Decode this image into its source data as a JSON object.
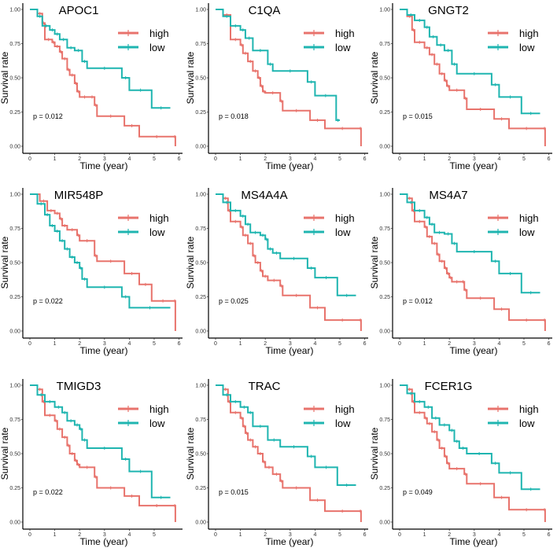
{
  "colors": {
    "high": "#E8736C",
    "low": "#1FB5B0"
  },
  "chart_data": [
    {
      "type": "line",
      "title": "APOC1",
      "xlabel": "Time (year)",
      "ylabel": "Survival rate",
      "xlim": [
        0,
        6
      ],
      "ylim": [
        0,
        1
      ],
      "xticks": [
        "0",
        "1",
        "2",
        "3",
        "4",
        "5",
        "6"
      ],
      "yticks": [
        "0.00",
        "0.25",
        "0.50",
        "0.75",
        "1.00"
      ],
      "legend": [
        "high",
        "low"
      ],
      "legend_position": "top-right",
      "annotation": "p = 0.012",
      "series": [
        {
          "name": "high",
          "x": [
            0,
            0.3,
            0.5,
            0.6,
            0.9,
            1.0,
            1.2,
            1.3,
            1.5,
            1.6,
            1.8,
            1.9,
            2.0,
            2.4,
            2.6,
            2.7,
            3.8,
            4.4,
            5.8,
            5.85
          ],
          "y": [
            1.0,
            0.97,
            0.9,
            0.78,
            0.76,
            0.73,
            0.69,
            0.64,
            0.56,
            0.52,
            0.46,
            0.4,
            0.36,
            0.36,
            0.3,
            0.22,
            0.15,
            0.07,
            0.07,
            0.0
          ]
        },
        {
          "name": "low",
          "x": [
            0,
            0.3,
            0.5,
            0.8,
            1.0,
            1.2,
            1.5,
            1.8,
            2.1,
            2.3,
            3.7,
            4.0,
            4.9,
            5.65
          ],
          "y": [
            1.0,
            0.95,
            0.88,
            0.85,
            0.82,
            0.78,
            0.72,
            0.7,
            0.62,
            0.57,
            0.5,
            0.41,
            0.28,
            0.28
          ]
        }
      ]
    },
    {
      "type": "line",
      "title": "C1QA",
      "xlabel": "Time (year)",
      "ylabel": "Survival rate",
      "xlim": [
        0,
        6
      ],
      "ylim": [
        0,
        1
      ],
      "xticks": [
        "0",
        "1",
        "2",
        "3",
        "4",
        "5",
        "6"
      ],
      "yticks": [
        "0.00",
        "0.25",
        "0.50",
        "0.75",
        "1.00"
      ],
      "legend": [
        "high",
        "low"
      ],
      "legend_position": "top-right",
      "annotation": "p = 0.018",
      "series": [
        {
          "name": "high",
          "x": [
            0,
            0.3,
            0.6,
            1.0,
            1.1,
            1.3,
            1.5,
            1.7,
            1.8,
            1.9,
            2.0,
            2.6,
            2.7,
            3.8,
            4.4,
            5.8,
            5.85
          ],
          "y": [
            1.0,
            0.96,
            0.78,
            0.74,
            0.68,
            0.62,
            0.55,
            0.5,
            0.44,
            0.4,
            0.39,
            0.33,
            0.26,
            0.19,
            0.13,
            0.13,
            0.0
          ]
        },
        {
          "name": "low",
          "x": [
            0,
            0.3,
            0.6,
            1.0,
            1.2,
            1.5,
            2.1,
            2.3,
            3.7,
            4.0,
            4.85,
            5.0
          ],
          "y": [
            1.0,
            0.95,
            0.88,
            0.85,
            0.79,
            0.7,
            0.6,
            0.55,
            0.47,
            0.37,
            0.19,
            0.19
          ]
        }
      ]
    },
    {
      "type": "line",
      "title": "GNGT2",
      "xlabel": "Time (year)",
      "ylabel": "Survival rate",
      "xlim": [
        0,
        6
      ],
      "ylim": [
        0,
        1
      ],
      "xticks": [
        "0",
        "1",
        "2",
        "3",
        "4",
        "5",
        "6"
      ],
      "yticks": [
        "0.00",
        "0.25",
        "0.50",
        "0.75",
        "1.00"
      ],
      "legend": [
        "high",
        "low"
      ],
      "legend_position": "top-right",
      "annotation": "p = 0.015",
      "series": [
        {
          "name": "high",
          "x": [
            0,
            0.3,
            0.5,
            0.6,
            1.0,
            1.2,
            1.4,
            1.6,
            1.8,
            1.9,
            2.0,
            2.6,
            2.7,
            3.8,
            4.4,
            5.8,
            5.85
          ],
          "y": [
            1.0,
            0.95,
            0.85,
            0.76,
            0.72,
            0.67,
            0.6,
            0.53,
            0.48,
            0.44,
            0.41,
            0.35,
            0.27,
            0.2,
            0.13,
            0.13,
            0.0
          ]
        },
        {
          "name": "low",
          "x": [
            0,
            0.3,
            0.6,
            1.0,
            1.2,
            1.5,
            1.8,
            2.1,
            2.3,
            3.7,
            4.0,
            4.9,
            5.65
          ],
          "y": [
            1.0,
            0.96,
            0.92,
            0.87,
            0.8,
            0.74,
            0.7,
            0.6,
            0.53,
            0.45,
            0.36,
            0.24,
            0.24
          ]
        }
      ]
    },
    {
      "type": "line",
      "title": "MIR548P",
      "xlabel": "Time (year)",
      "ylabel": "Survival rate",
      "xlim": [
        0,
        6
      ],
      "ylim": [
        0,
        1
      ],
      "xticks": [
        "0",
        "1",
        "2",
        "3",
        "4",
        "5",
        "6"
      ],
      "yticks": [
        "0.00",
        "0.25",
        "0.50",
        "0.75",
        "1.00"
      ],
      "legend": [
        "high",
        "low"
      ],
      "legend_position": "top-right",
      "annotation": "p = 0.022",
      "series": [
        {
          "name": "high",
          "x": [
            0,
            0.4,
            0.7,
            1.0,
            1.2,
            1.3,
            1.5,
            1.9,
            2.0,
            2.6,
            2.7,
            3.8,
            4.4,
            4.9,
            5.8,
            5.85
          ],
          "y": [
            1.0,
            0.95,
            0.88,
            0.86,
            0.82,
            0.77,
            0.74,
            0.7,
            0.66,
            0.55,
            0.51,
            0.42,
            0.34,
            0.22,
            0.22,
            0.0
          ]
        },
        {
          "name": "low",
          "x": [
            0,
            0.3,
            0.6,
            0.8,
            1.0,
            1.2,
            1.4,
            1.6,
            1.8,
            2.0,
            2.1,
            2.3,
            3.7,
            4.0,
            5.65
          ],
          "y": [
            1.0,
            0.93,
            0.85,
            0.77,
            0.73,
            0.66,
            0.6,
            0.54,
            0.5,
            0.46,
            0.38,
            0.32,
            0.25,
            0.17,
            0.17
          ]
        }
      ]
    },
    {
      "type": "line",
      "title": "MS4A4A",
      "xlabel": "Time (year)",
      "ylabel": "Survival rate",
      "xlim": [
        0,
        6
      ],
      "ylim": [
        0,
        1
      ],
      "xticks": [
        "0",
        "1",
        "2",
        "3",
        "4",
        "5",
        "6"
      ],
      "yticks": [
        "0.00",
        "0.25",
        "0.50",
        "0.75",
        "1.00"
      ],
      "legend": [
        "high",
        "low"
      ],
      "legend_position": "top-right",
      "annotation": "p = 0.025",
      "series": [
        {
          "name": "high",
          "x": [
            0,
            0.3,
            0.5,
            0.6,
            1.0,
            1.1,
            1.3,
            1.5,
            1.6,
            1.8,
            1.9,
            2.1,
            2.6,
            2.7,
            3.8,
            4.4,
            5.8,
            5.85
          ],
          "y": [
            1.0,
            0.97,
            0.88,
            0.8,
            0.76,
            0.7,
            0.64,
            0.55,
            0.5,
            0.44,
            0.4,
            0.37,
            0.33,
            0.26,
            0.17,
            0.08,
            0.08,
            0.0
          ]
        },
        {
          "name": "low",
          "x": [
            0,
            0.3,
            0.6,
            1.0,
            1.2,
            1.4,
            1.8,
            2.0,
            2.1,
            2.3,
            2.6,
            3.7,
            4.0,
            4.9,
            5.65
          ],
          "y": [
            1.0,
            0.94,
            0.88,
            0.84,
            0.78,
            0.72,
            0.7,
            0.67,
            0.6,
            0.57,
            0.53,
            0.46,
            0.39,
            0.26,
            0.26
          ]
        }
      ]
    },
    {
      "type": "line",
      "title": "MS4A7",
      "xlabel": "Time (year)",
      "ylabel": "Survival rate",
      "xlim": [
        0,
        6
      ],
      "ylim": [
        0,
        1
      ],
      "xticks": [
        "0",
        "1",
        "2",
        "3",
        "4",
        "5",
        "6"
      ],
      "yticks": [
        "0.00",
        "0.25",
        "0.50",
        "0.75",
        "1.00"
      ],
      "legend": [
        "high",
        "low"
      ],
      "legend_position": "top-right",
      "annotation": "p = 0.012",
      "series": [
        {
          "name": "high",
          "x": [
            0,
            0.3,
            0.5,
            0.6,
            1.0,
            1.1,
            1.3,
            1.5,
            1.6,
            1.8,
            1.9,
            2.0,
            2.1,
            2.5,
            2.6,
            2.7,
            3.8,
            4.4,
            5.8,
            5.85
          ],
          "y": [
            1.0,
            0.97,
            0.88,
            0.8,
            0.76,
            0.69,
            0.64,
            0.56,
            0.51,
            0.46,
            0.42,
            0.39,
            0.36,
            0.36,
            0.3,
            0.24,
            0.16,
            0.08,
            0.08,
            0.0
          ]
        },
        {
          "name": "low",
          "x": [
            0,
            0.3,
            0.6,
            1.0,
            1.2,
            1.4,
            1.8,
            2.1,
            2.3,
            3.7,
            4.0,
            4.9,
            5.65
          ],
          "y": [
            1.0,
            0.94,
            0.88,
            0.83,
            0.78,
            0.72,
            0.71,
            0.64,
            0.58,
            0.51,
            0.42,
            0.28,
            0.28
          ]
        }
      ]
    },
    {
      "type": "line",
      "title": "TMIGD3",
      "xlabel": "Time (year)",
      "ylabel": "Survival rate",
      "xlim": [
        0,
        6
      ],
      "ylim": [
        0,
        1
      ],
      "xticks": [
        "0",
        "1",
        "2",
        "3",
        "4",
        "5"
      ],
      "yticks": [
        "0.00",
        "0.25",
        "0.50",
        "0.75",
        "1.00"
      ],
      "legend": [
        "high",
        "low"
      ],
      "legend_position": "top-right",
      "annotation": "p = 0.022",
      "series": [
        {
          "name": "high",
          "x": [
            0,
            0.3,
            0.5,
            0.6,
            1.0,
            1.1,
            1.3,
            1.5,
            1.6,
            1.8,
            1.9,
            2.0,
            2.6,
            2.7,
            3.8,
            4.4,
            5.8,
            5.85
          ],
          "y": [
            1.0,
            0.97,
            0.88,
            0.78,
            0.74,
            0.68,
            0.62,
            0.56,
            0.5,
            0.45,
            0.42,
            0.4,
            0.33,
            0.25,
            0.19,
            0.12,
            0.12,
            0.0
          ]
        },
        {
          "name": "low",
          "x": [
            0,
            0.3,
            0.6,
            1.0,
            1.3,
            1.5,
            1.8,
            2.0,
            2.1,
            2.3,
            3.7,
            4.0,
            4.9,
            5.65
          ],
          "y": [
            1.0,
            0.93,
            0.88,
            0.84,
            0.8,
            0.74,
            0.71,
            0.68,
            0.6,
            0.54,
            0.46,
            0.37,
            0.18,
            0.18
          ]
        }
      ]
    },
    {
      "type": "line",
      "title": "TRAC",
      "xlabel": "Time (year)",
      "ylabel": "Survival rate",
      "xlim": [
        0,
        6
      ],
      "ylim": [
        0,
        1
      ],
      "xticks": [
        "0",
        "1",
        "2",
        "3",
        "4",
        "5",
        "6"
      ],
      "yticks": [
        "0.00",
        "0.25",
        "0.50",
        "0.75",
        "1.00"
      ],
      "legend": [
        "high",
        "low"
      ],
      "legend_position": "top-right",
      "annotation": "p = 0.015",
      "series": [
        {
          "name": "high",
          "x": [
            0,
            0.3,
            0.5,
            0.6,
            1.0,
            1.1,
            1.2,
            1.3,
            1.5,
            1.7,
            1.9,
            2.0,
            2.3,
            2.6,
            2.7,
            3.8,
            4.4,
            5.8,
            5.85
          ],
          "y": [
            1.0,
            0.97,
            0.88,
            0.8,
            0.76,
            0.7,
            0.65,
            0.6,
            0.55,
            0.5,
            0.44,
            0.4,
            0.35,
            0.3,
            0.25,
            0.16,
            0.08,
            0.08,
            0.0
          ]
        },
        {
          "name": "low",
          "x": [
            0,
            0.3,
            0.6,
            1.0,
            1.3,
            1.5,
            2.1,
            2.6,
            3.7,
            4.0,
            4.9,
            5.65
          ],
          "y": [
            1.0,
            0.93,
            0.88,
            0.84,
            0.8,
            0.7,
            0.6,
            0.55,
            0.48,
            0.4,
            0.27,
            0.27
          ]
        }
      ]
    },
    {
      "type": "line",
      "title": "FCER1G",
      "xlabel": "Time (year)",
      "ylabel": "Survival rate",
      "xlim": [
        0,
        6
      ],
      "ylim": [
        0,
        1
      ],
      "xticks": [
        "0",
        "1",
        "2",
        "3",
        "4",
        "5",
        "6"
      ],
      "yticks": [
        "0.00",
        "0.25",
        "0.50",
        "0.75",
        "1.00"
      ],
      "legend": [
        "high",
        "low"
      ],
      "legend_position": "top-right",
      "annotation": "p = 0.049",
      "series": [
        {
          "name": "high",
          "x": [
            0,
            0.3,
            0.5,
            0.6,
            1.0,
            1.1,
            1.3,
            1.5,
            1.6,
            1.8,
            1.9,
            2.0,
            2.6,
            2.7,
            3.8,
            4.4,
            5.8,
            5.85
          ],
          "y": [
            1.0,
            0.97,
            0.88,
            0.8,
            0.76,
            0.72,
            0.66,
            0.6,
            0.54,
            0.48,
            0.43,
            0.39,
            0.35,
            0.28,
            0.18,
            0.09,
            0.09,
            0.0
          ]
        },
        {
          "name": "low",
          "x": [
            0,
            0.3,
            0.6,
            1.0,
            1.3,
            1.6,
            2.0,
            2.2,
            2.4,
            2.7,
            3.7,
            4.0,
            4.9,
            5.65
          ],
          "y": [
            1.0,
            0.94,
            0.88,
            0.84,
            0.76,
            0.71,
            0.67,
            0.59,
            0.54,
            0.5,
            0.43,
            0.36,
            0.24,
            0.24
          ]
        }
      ]
    }
  ]
}
